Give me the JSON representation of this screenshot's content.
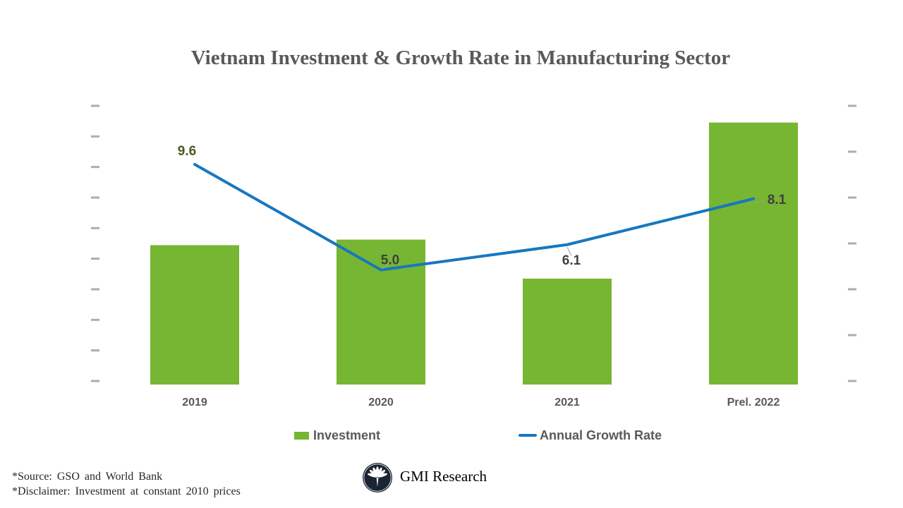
{
  "title": "Vietnam Investment & Growth Rate in Manufacturing Sector",
  "legend": {
    "items": [
      {
        "label": "Investment",
        "marker": "square"
      },
      {
        "label": "Annual Growth Rate",
        "marker": "line"
      }
    ]
  },
  "footer": {
    "source_line": "*Source: GSO and World Bank",
    "disclaimer_line": "*Disclaimer: Investment at constant 2010 prices",
    "brand_name": "GMI Research",
    "logo_icon": "palm-tree-icon"
  },
  "colors": {
    "bar": "#76B633",
    "line": "#1777C0",
    "title_text": "#595959",
    "axis_label_text": "#595959",
    "legend_text": "#595959",
    "axis_tick": "#ADADAD",
    "leader_line": "#A0A0A0",
    "data_label_colors": [
      "#4A5B1D",
      "#404040",
      "#404040",
      "#404040"
    ],
    "logo_bg": "#1B2531",
    "footer_text": "#262626"
  },
  "chart_data": {
    "type": "bar",
    "categories": [
      "2019",
      "2020",
      "2021",
      "Prel. 2022"
    ],
    "series": [
      {
        "name": "Investment",
        "type": "bar",
        "axis": "left",
        "values": [
          0.5,
          0.52,
          0.38,
          0.94
        ],
        "note": "Left-axis tick labels are illegible in the source image; values are fractions of the full axis height (investment at constant 2010 prices)."
      },
      {
        "name": "Annual Growth Rate",
        "type": "line",
        "axis": "right",
        "values": [
          9.6,
          5.0,
          6.1,
          8.1
        ]
      }
    ],
    "data_labels": [
      "9.6",
      "5.0",
      "6.1",
      "8.1"
    ],
    "y_axis_left": {
      "tick_count": 10,
      "labels_illegible": true
    },
    "y_axis_right": {
      "tick_count": 7,
      "range": [
        0,
        12
      ],
      "labels_illegible": true
    },
    "grid": false,
    "legend_position": "bottom"
  }
}
